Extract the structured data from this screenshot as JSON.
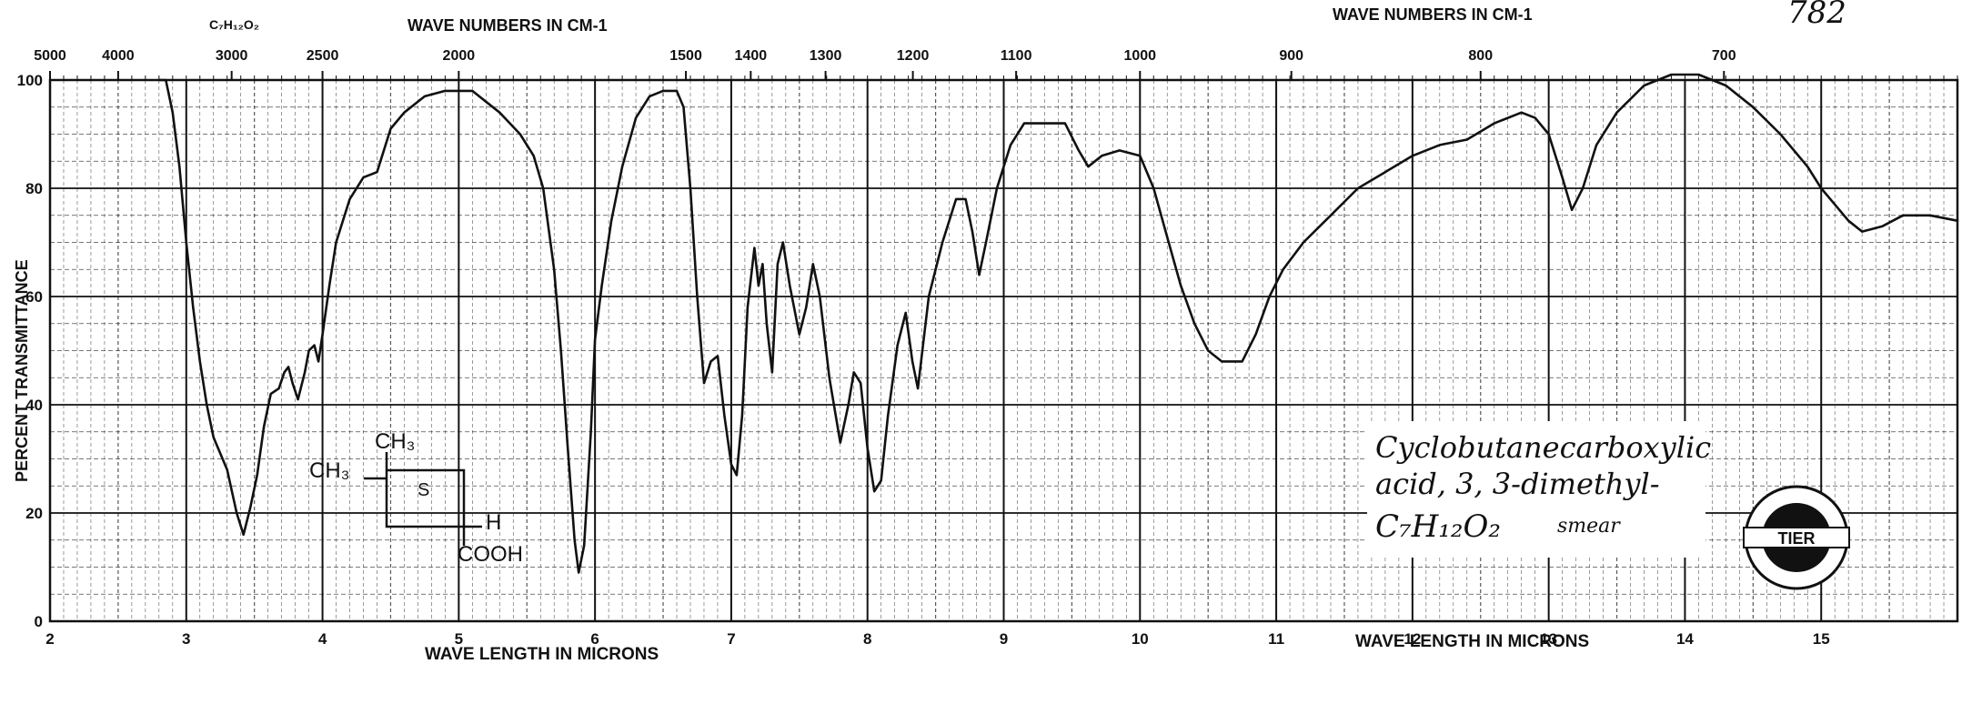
{
  "chart_data": {
    "type": "line",
    "title": "",
    "catalog_number": "782",
    "sample_formula_header": "C₇H₁₂O₂",
    "top_axis_label_left": "WAVE NUMBERS IN CM-1",
    "top_axis_label_right": "WAVE NUMBERS IN CM-1",
    "xlabel_left": "WAVE LENGTH IN MICRONS",
    "xlabel_right": "WAVE LENGTH IN MICRONS",
    "ylabel": "PERCENT TRANSMITTANCE",
    "xlim": [
      2,
      16
    ],
    "ylim": [
      0,
      100
    ],
    "x_ticks": [
      {
        "value": 2,
        "label": "2"
      },
      {
        "value": 3,
        "label": "3"
      },
      {
        "value": 4,
        "label": "4"
      },
      {
        "value": 5,
        "label": "5"
      },
      {
        "value": 6,
        "label": "6"
      },
      {
        "value": 7,
        "label": "7"
      },
      {
        "value": 8,
        "label": "8"
      },
      {
        "value": 9,
        "label": "9"
      },
      {
        "value": 10,
        "label": "10"
      },
      {
        "value": 11,
        "label": "11"
      },
      {
        "value": 12,
        "label": "12"
      },
      {
        "value": 13,
        "label": "13"
      },
      {
        "value": 14,
        "label": "14"
      },
      {
        "value": 15,
        "label": "15"
      }
    ],
    "y_ticks": [
      {
        "value": 0,
        "label": "0"
      },
      {
        "value": 20,
        "label": "20"
      },
      {
        "value": 40,
        "label": "40"
      },
      {
        "value": 60,
        "label": "60"
      },
      {
        "value": 80,
        "label": "80"
      },
      {
        "value": 100,
        "label": "100"
      }
    ],
    "top_ticks": [
      {
        "label": "5000",
        "x": 2.0
      },
      {
        "label": "4000",
        "x": 2.5
      },
      {
        "label": "3000",
        "x": 3.333
      },
      {
        "label": "2500",
        "x": 4.0
      },
      {
        "label": "2000",
        "x": 5.0
      },
      {
        "label": "1500",
        "x": 6.667
      },
      {
        "label": "1400",
        "x": 7.143
      },
      {
        "label": "1300",
        "x": 7.692
      },
      {
        "label": "1200",
        "x": 8.333
      },
      {
        "label": "1100",
        "x": 9.091
      },
      {
        "label": "1000",
        "x": 10.0
      },
      {
        "label": "900",
        "x": 11.111
      },
      {
        "label": "800",
        "x": 12.5
      },
      {
        "label": "700",
        "x": 14.286
      }
    ],
    "grid": true,
    "compound_name_line1": "Cyclobutanecarboxylic",
    "compound_name_line2": "acid, 3, 3-dimethyl-",
    "compound_formula": "C₇H₁₂O₂",
    "sample_prep": "smear",
    "structure_labels": {
      "methyl_top": "CH₃",
      "methyl_left": "CH₃",
      "ring_label": "S",
      "hydrogen": "H",
      "carboxyl": "COOH"
    },
    "logo_text": "TIER",
    "series": [
      {
        "points": [
          [
            2.8,
            100
          ],
          [
            2.85,
            100
          ],
          [
            2.9,
            94
          ],
          [
            2.95,
            84
          ],
          [
            3.0,
            70
          ],
          [
            3.05,
            58
          ],
          [
            3.1,
            48
          ],
          [
            3.15,
            40
          ],
          [
            3.2,
            34
          ],
          [
            3.3,
            28
          ],
          [
            3.37,
            20
          ],
          [
            3.42,
            16
          ],
          [
            3.47,
            21
          ],
          [
            3.52,
            27
          ],
          [
            3.57,
            36
          ],
          [
            3.62,
            42
          ],
          [
            3.68,
            43
          ],
          [
            3.72,
            46
          ],
          [
            3.75,
            47
          ],
          [
            3.78,
            44
          ],
          [
            3.82,
            41
          ],
          [
            3.87,
            46
          ],
          [
            3.9,
            50
          ],
          [
            3.94,
            51
          ],
          [
            3.97,
            48
          ],
          [
            4.0,
            53
          ],
          [
            4.05,
            62
          ],
          [
            4.1,
            70
          ],
          [
            4.2,
            78
          ],
          [
            4.3,
            82
          ],
          [
            4.4,
            83
          ],
          [
            4.5,
            91
          ],
          [
            4.6,
            94
          ],
          [
            4.75,
            97
          ],
          [
            4.9,
            98
          ],
          [
            5.0,
            98
          ],
          [
            5.1,
            98
          ],
          [
            5.2,
            96
          ],
          [
            5.3,
            94
          ],
          [
            5.45,
            90
          ],
          [
            5.55,
            86
          ],
          [
            5.62,
            80
          ],
          [
            5.7,
            65
          ],
          [
            5.75,
            50
          ],
          [
            5.8,
            32
          ],
          [
            5.85,
            15
          ],
          [
            5.88,
            9
          ],
          [
            5.92,
            14
          ],
          [
            5.97,
            35
          ],
          [
            6.0,
            52
          ],
          [
            6.05,
            62
          ],
          [
            6.12,
            74
          ],
          [
            6.2,
            84
          ],
          [
            6.3,
            93
          ],
          [
            6.4,
            97
          ],
          [
            6.5,
            98
          ],
          [
            6.6,
            98
          ],
          [
            6.65,
            95
          ],
          [
            6.7,
            80
          ],
          [
            6.75,
            60
          ],
          [
            6.8,
            44
          ],
          [
            6.85,
            48
          ],
          [
            6.9,
            49
          ],
          [
            6.95,
            38
          ],
          [
            7.0,
            29
          ],
          [
            7.04,
            27
          ],
          [
            7.08,
            38
          ],
          [
            7.12,
            58
          ],
          [
            7.17,
            69
          ],
          [
            7.2,
            62
          ],
          [
            7.23,
            66
          ],
          [
            7.26,
            55
          ],
          [
            7.3,
            46
          ],
          [
            7.34,
            66
          ],
          [
            7.38,
            70
          ],
          [
            7.43,
            62
          ],
          [
            7.5,
            53
          ],
          [
            7.55,
            58
          ],
          [
            7.6,
            66
          ],
          [
            7.65,
            60
          ],
          [
            7.72,
            45
          ],
          [
            7.8,
            33
          ],
          [
            7.86,
            40
          ],
          [
            7.9,
            46
          ],
          [
            7.95,
            44
          ],
          [
            8.0,
            32
          ],
          [
            8.05,
            24
          ],
          [
            8.1,
            26
          ],
          [
            8.15,
            38
          ],
          [
            8.22,
            51
          ],
          [
            8.28,
            57
          ],
          [
            8.33,
            48
          ],
          [
            8.37,
            43
          ],
          [
            8.45,
            60
          ],
          [
            8.55,
            70
          ],
          [
            8.65,
            78
          ],
          [
            8.72,
            78
          ],
          [
            8.77,
            72
          ],
          [
            8.82,
            64
          ],
          [
            8.87,
            70
          ],
          [
            8.95,
            80
          ],
          [
            9.05,
            88
          ],
          [
            9.15,
            92
          ],
          [
            9.3,
            92
          ],
          [
            9.45,
            92
          ],
          [
            9.55,
            87
          ],
          [
            9.62,
            84
          ],
          [
            9.72,
            86
          ],
          [
            9.85,
            87
          ],
          [
            10.0,
            86
          ],
          [
            10.1,
            80
          ],
          [
            10.2,
            71
          ],
          [
            10.3,
            62
          ],
          [
            10.4,
            55
          ],
          [
            10.5,
            50
          ],
          [
            10.6,
            48
          ],
          [
            10.75,
            48
          ],
          [
            10.85,
            53
          ],
          [
            10.95,
            60
          ],
          [
            11.05,
            65
          ],
          [
            11.2,
            70
          ],
          [
            11.4,
            75
          ],
          [
            11.6,
            80
          ],
          [
            11.8,
            83
          ],
          [
            12.0,
            86
          ],
          [
            12.2,
            88
          ],
          [
            12.4,
            89
          ],
          [
            12.6,
            92
          ],
          [
            12.8,
            94
          ],
          [
            12.9,
            93
          ],
          [
            13.0,
            90
          ],
          [
            13.1,
            82
          ],
          [
            13.17,
            76
          ],
          [
            13.25,
            80
          ],
          [
            13.35,
            88
          ],
          [
            13.5,
            94
          ],
          [
            13.7,
            99
          ],
          [
            13.9,
            101
          ],
          [
            14.1,
            101
          ],
          [
            14.3,
            99
          ],
          [
            14.5,
            95
          ],
          [
            14.7,
            90
          ],
          [
            14.9,
            84
          ],
          [
            15.0,
            80
          ],
          [
            15.1,
            77
          ],
          [
            15.2,
            74
          ],
          [
            15.3,
            72
          ],
          [
            15.45,
            73
          ],
          [
            15.6,
            75
          ],
          [
            15.8,
            75
          ],
          [
            16.0,
            74
          ]
        ]
      }
    ]
  }
}
